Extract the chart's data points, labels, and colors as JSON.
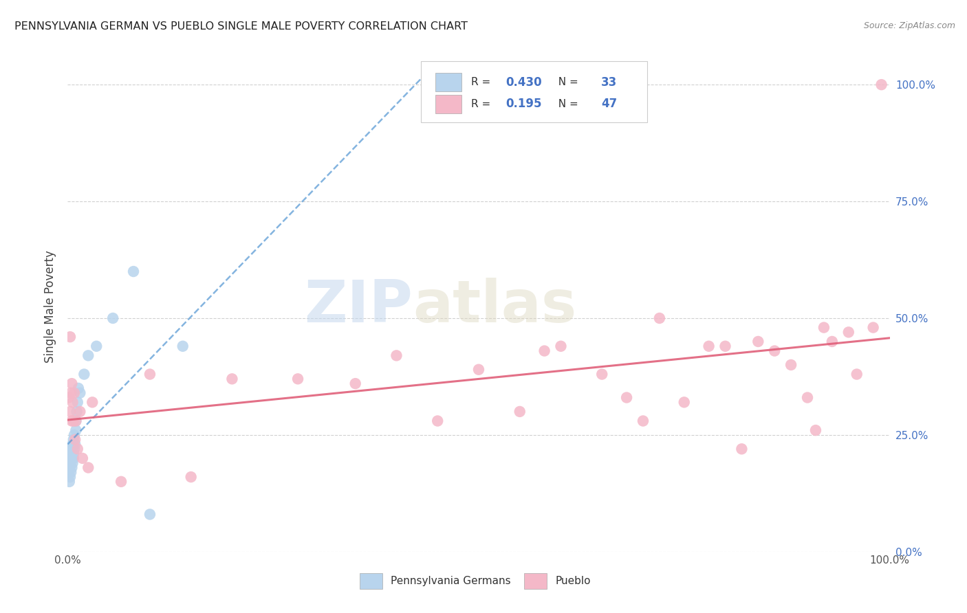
{
  "title": "PENNSYLVANIA GERMAN VS PUEBLO SINGLE MALE POVERTY CORRELATION CHART",
  "source": "Source: ZipAtlas.com",
  "ylabel": "Single Male Poverty",
  "legend_entries": [
    {
      "label": "Pennsylvania Germans",
      "R": "0.430",
      "N": "33",
      "color": "#b8d4ed",
      "line_color": "#5b9bd5"
    },
    {
      "label": "Pueblo",
      "R": "0.195",
      "N": "47",
      "color": "#f4b8c8",
      "line_color": "#e0607a"
    }
  ],
  "watermark_zip": "ZIP",
  "watermark_atlas": "atlas",
  "background_color": "#ffffff",
  "pa_german_x": [
    0.001,
    0.002,
    0.002,
    0.003,
    0.003,
    0.003,
    0.004,
    0.004,
    0.004,
    0.005,
    0.005,
    0.005,
    0.006,
    0.006,
    0.007,
    0.007,
    0.007,
    0.008,
    0.008,
    0.009,
    0.01,
    0.01,
    0.011,
    0.012,
    0.013,
    0.015,
    0.02,
    0.025,
    0.035,
    0.055,
    0.08,
    0.1,
    0.14
  ],
  "pa_german_y": [
    0.17,
    0.15,
    0.18,
    0.16,
    0.19,
    0.2,
    0.17,
    0.21,
    0.22,
    0.18,
    0.2,
    0.22,
    0.19,
    0.23,
    0.21,
    0.2,
    0.24,
    0.22,
    0.25,
    0.23,
    0.26,
    0.28,
    0.3,
    0.32,
    0.35,
    0.34,
    0.38,
    0.42,
    0.44,
    0.5,
    0.6,
    0.08,
    0.44
  ],
  "pueblo_x": [
    0.001,
    0.003,
    0.003,
    0.004,
    0.005,
    0.005,
    0.006,
    0.007,
    0.008,
    0.009,
    0.01,
    0.012,
    0.015,
    0.018,
    0.025,
    0.03,
    0.065,
    0.1,
    0.15,
    0.2,
    0.28,
    0.35,
    0.4,
    0.45,
    0.5,
    0.55,
    0.58,
    0.6,
    0.65,
    0.68,
    0.7,
    0.72,
    0.75,
    0.78,
    0.8,
    0.82,
    0.84,
    0.86,
    0.88,
    0.9,
    0.91,
    0.92,
    0.93,
    0.95,
    0.96,
    0.98,
    0.99
  ],
  "pueblo_y": [
    0.33,
    0.46,
    0.3,
    0.34,
    0.28,
    0.36,
    0.32,
    0.28,
    0.34,
    0.24,
    0.28,
    0.22,
    0.3,
    0.2,
    0.18,
    0.32,
    0.15,
    0.38,
    0.16,
    0.37,
    0.37,
    0.36,
    0.42,
    0.28,
    0.39,
    0.3,
    0.43,
    0.44,
    0.38,
    0.33,
    0.28,
    0.5,
    0.32,
    0.44,
    0.44,
    0.22,
    0.45,
    0.43,
    0.4,
    0.33,
    0.26,
    0.48,
    0.45,
    0.47,
    0.38,
    0.48,
    1.0
  ],
  "xlim": [
    0.0,
    1.0
  ],
  "ylim": [
    0.0,
    1.05
  ],
  "ytick_positions": [
    0.0,
    0.25,
    0.5,
    0.75,
    1.0
  ],
  "ytick_labels": [
    "0.0%",
    "25.0%",
    "50.0%",
    "75.0%",
    "100.0%"
  ]
}
